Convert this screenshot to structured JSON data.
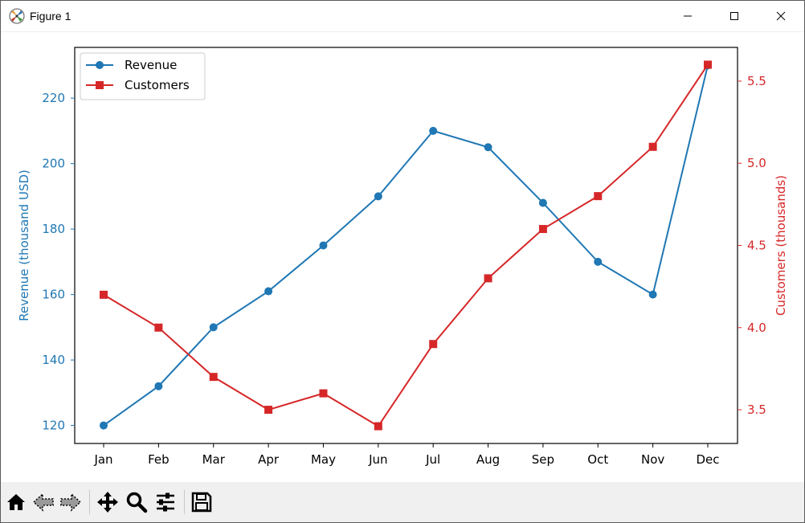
{
  "window": {
    "title": "Figure 1"
  },
  "chart_data": {
    "type": "line",
    "categories": [
      "Jan",
      "Feb",
      "Mar",
      "Apr",
      "May",
      "Jun",
      "Jul",
      "Aug",
      "Sep",
      "Oct",
      "Nov",
      "Dec"
    ],
    "series": [
      {
        "name": "Revenue",
        "axis": "left",
        "color": "#1f77b4",
        "marker": "circle",
        "values": [
          120,
          132,
          150,
          161,
          175,
          190,
          210,
          205,
          188,
          170,
          160,
          230
        ]
      },
      {
        "name": "Customers",
        "axis": "right",
        "color": "#d62728",
        "marker": "square",
        "values": [
          4.2,
          4.0,
          3.7,
          3.5,
          3.6,
          3.4,
          3.9,
          4.3,
          4.6,
          4.8,
          5.1,
          5.6
        ]
      }
    ],
    "ylabel_left": "Revenue (thousand USD)",
    "ylabel_right": "Customers (thousands)",
    "ylim_left": [
      114.5,
      235.5
    ],
    "ylim_right": [
      3.295,
      5.705
    ],
    "yticks_left": [
      "120",
      "140",
      "160",
      "180",
      "200",
      "220"
    ],
    "yticks_right": [
      "3.5",
      "4.0",
      "4.5",
      "5.0",
      "5.5"
    ],
    "yticks_left_values": [
      120,
      140,
      160,
      180,
      200,
      220
    ],
    "yticks_right_values": [
      3.5,
      4.0,
      4.5,
      5.0,
      5.5
    ],
    "legend": {
      "position": "upper-left",
      "entries": [
        "Revenue",
        "Customers"
      ]
    },
    "grid": false
  }
}
